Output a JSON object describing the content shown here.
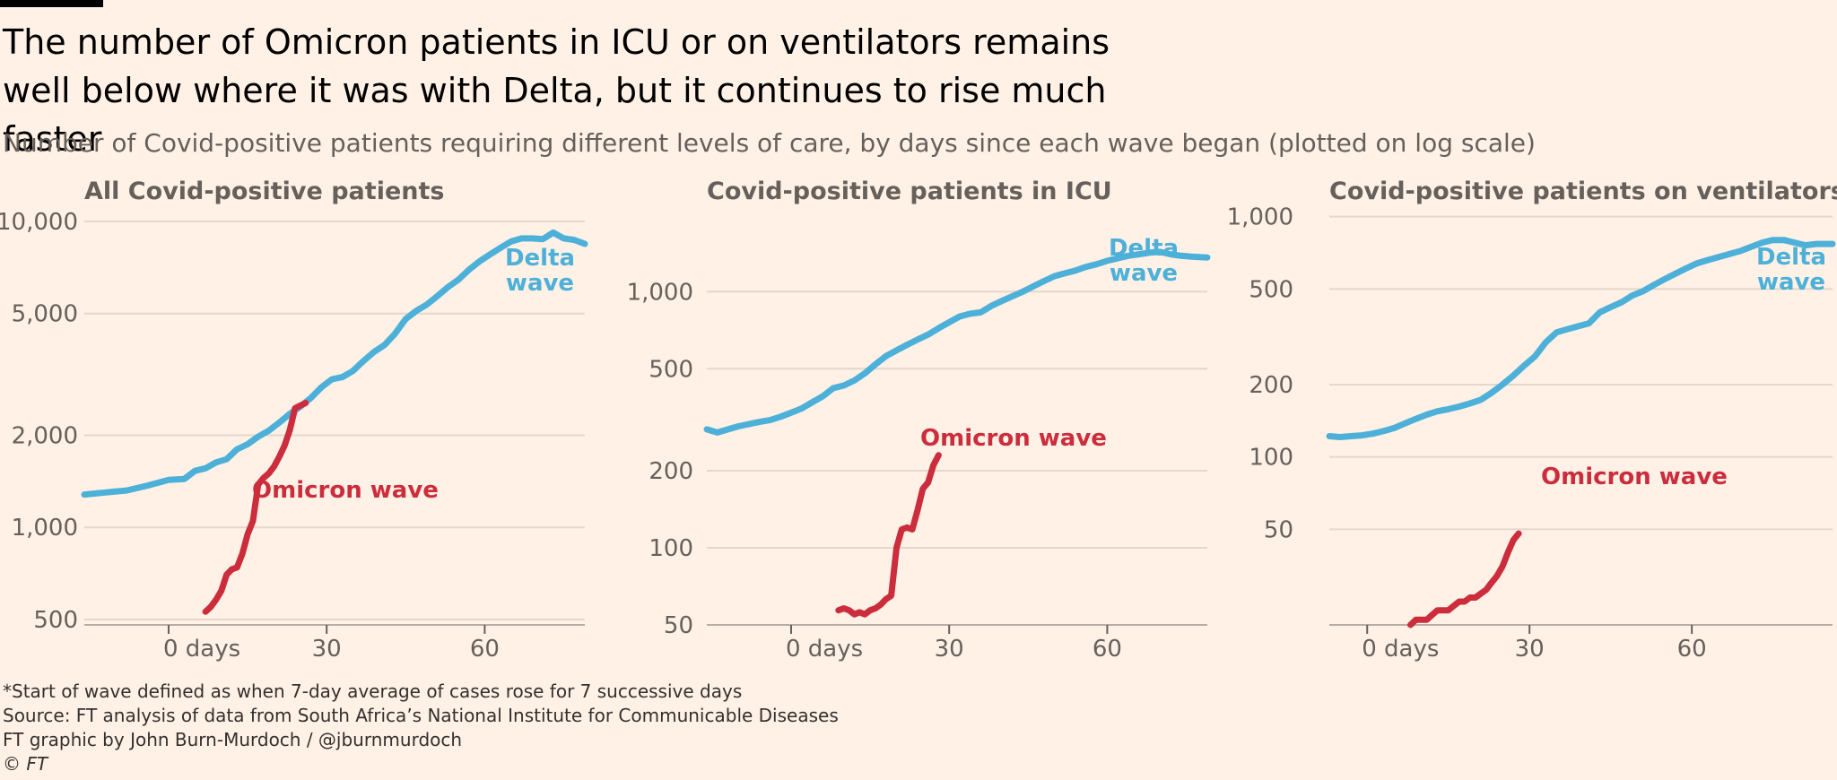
{
  "title": "The number of Omicron patients in ICU or on ventilators remains well below where it was with Delta, but it continues to rise much faster",
  "subtitle": "Number of Covid-positive patients requiring different levels of care, by days since each wave began (plotted on log scale)",
  "footer": {
    "note": "*Start of wave defined as when 7-day average of cases rose for 7 successive days",
    "source": "Source: FT analysis of data from South Africa’s National Institute for Communicable Diseases",
    "credit": "FT graphic by John Burn-Murdoch / @jburnmurdoch",
    "copyright": "© FT"
  },
  "colors": {
    "delta": "#4DB0D9",
    "omicron": "#CC2D3D",
    "background": "#FFF1E5",
    "grid": "#E3D8CC"
  },
  "chart_data": [
    {
      "type": "line",
      "title": "All Covid-positive patients",
      "xlabel": "",
      "ylabel": "",
      "yscale": "log",
      "xlim": [
        -16,
        79
      ],
      "ylim": [
        480,
        10000
      ],
      "x_ticks": [
        0,
        30,
        60
      ],
      "x_tick_labels": [
        "0 days",
        "30",
        "60"
      ],
      "y_ticks": [
        500,
        1000,
        2000,
        5000,
        10000
      ],
      "y_tick_labels": [
        "500",
        "1,000",
        "2,000",
        "5,000",
        "10,000"
      ],
      "series": [
        {
          "name": "Delta wave",
          "label": [
            "Delta",
            "wave"
          ],
          "x": [
            -16,
            -12,
            -8,
            -4,
            0,
            3,
            5,
            7,
            9,
            11,
            13,
            15,
            17,
            19,
            21,
            23,
            25,
            27,
            29,
            31,
            33,
            35,
            37,
            39,
            41,
            43,
            45,
            47,
            49,
            51,
            53,
            55,
            57,
            59,
            61,
            63,
            65,
            67,
            69,
            71,
            73,
            75,
            77,
            79
          ],
          "y": [
            1280,
            1300,
            1320,
            1370,
            1430,
            1440,
            1530,
            1560,
            1630,
            1670,
            1800,
            1870,
            1980,
            2070,
            2200,
            2350,
            2480,
            2650,
            2870,
            3050,
            3100,
            3250,
            3500,
            3750,
            3950,
            4300,
            4800,
            5100,
            5350,
            5700,
            6100,
            6450,
            6950,
            7400,
            7800,
            8200,
            8600,
            8800,
            8800,
            8750,
            9200,
            8800,
            8700,
            8450
          ]
        },
        {
          "name": "Omicron wave",
          "label": [
            "Omicron wave"
          ],
          "x": [
            7,
            8,
            9,
            10,
            11,
            12,
            13,
            14,
            15,
            16,
            17,
            18,
            19,
            20,
            21,
            22,
            23,
            24,
            25,
            26
          ],
          "y": [
            530,
            550,
            580,
            620,
            700,
            730,
            740,
            820,
            950,
            1050,
            1380,
            1450,
            1500,
            1580,
            1700,
            1850,
            2080,
            2450,
            2500,
            2550
          ]
        }
      ]
    },
    {
      "type": "line",
      "title": "Covid-positive patients in ICU",
      "xlabel": "",
      "ylabel": "",
      "yscale": "log",
      "xlim": [
        -16,
        79
      ],
      "ylim": [
        50,
        1500
      ],
      "x_ticks": [
        0,
        30,
        60
      ],
      "x_tick_labels": [
        "0 days",
        "30",
        "60"
      ],
      "y_ticks": [
        50,
        100,
        200,
        500,
        1000
      ],
      "y_tick_labels": [
        "50",
        "100",
        "200",
        "500",
        "1,000"
      ],
      "series": [
        {
          "name": "Delta wave",
          "label": [
            "Delta",
            "wave"
          ],
          "x": [
            -16,
            -14,
            -10,
            -6,
            -4,
            -2,
            0,
            2,
            4,
            6,
            8,
            10,
            12,
            14,
            16,
            18,
            20,
            22,
            24,
            26,
            28,
            30,
            32,
            34,
            36,
            38,
            40,
            42,
            44,
            46,
            48,
            50,
            52,
            54,
            56,
            58,
            60,
            62,
            64,
            66,
            68,
            70,
            72,
            74,
            76,
            79
          ],
          "y": [
            290,
            282,
            298,
            310,
            315,
            325,
            337,
            350,
            370,
            390,
            420,
            430,
            450,
            480,
            520,
            560,
            590,
            620,
            650,
            680,
            720,
            760,
            800,
            820,
            830,
            880,
            920,
            960,
            1000,
            1050,
            1100,
            1150,
            1180,
            1210,
            1250,
            1280,
            1320,
            1350,
            1380,
            1400,
            1420,
            1430,
            1400,
            1380,
            1370,
            1360
          ]
        },
        {
          "name": "Omicron wave",
          "label": [
            "Omicron wave"
          ],
          "x": [
            9,
            10,
            11,
            12,
            13,
            14,
            15,
            16,
            17,
            18,
            19,
            20,
            21,
            22,
            23,
            24,
            25,
            26,
            27,
            28
          ],
          "y": [
            57,
            58,
            57,
            55,
            56,
            55,
            57,
            58,
            60,
            63,
            65,
            100,
            118,
            120,
            118,
            140,
            170,
            180,
            210,
            230
          ]
        }
      ]
    },
    {
      "type": "line",
      "title": "Covid-positive patients on ventilators",
      "xlabel": "",
      "ylabel": "",
      "yscale": "log",
      "xlim": [
        -7,
        86
      ],
      "ylim": [
        20,
        1050
      ],
      "x_ticks": [
        0,
        30,
        60
      ],
      "x_tick_labels": [
        "0 days",
        "30",
        "60"
      ],
      "y_ticks": [
        50,
        100,
        200,
        500,
        1000
      ],
      "y_tick_labels": [
        "50",
        "100",
        "200",
        "500",
        "1,000"
      ],
      "series": [
        {
          "name": "Delta wave",
          "label": [
            "Delta",
            "wave"
          ],
          "x": [
            -7,
            -5,
            -3,
            -1,
            1,
            3,
            5,
            7,
            9,
            11,
            13,
            15,
            17,
            19,
            21,
            23,
            25,
            27,
            29,
            31,
            33,
            35,
            37,
            39,
            41,
            43,
            45,
            47,
            49,
            51,
            53,
            55,
            57,
            59,
            61,
            63,
            65,
            67,
            69,
            71,
            73,
            75,
            77,
            79,
            81,
            83,
            86
          ],
          "y": [
            122,
            121,
            122,
            123,
            125,
            128,
            132,
            138,
            144,
            150,
            155,
            158,
            162,
            167,
            173,
            185,
            200,
            218,
            240,
            262,
            300,
            330,
            340,
            350,
            360,
            400,
            420,
            440,
            470,
            490,
            520,
            550,
            580,
            610,
            640,
            660,
            680,
            700,
            720,
            750,
            780,
            800,
            800,
            780,
            760,
            770,
            770
          ]
        },
        {
          "name": "Omicron wave",
          "label": [
            "Omicron wave"
          ],
          "x": [
            8,
            9,
            10,
            11,
            12,
            13,
            14,
            15,
            16,
            17,
            18,
            19,
            20,
            21,
            22,
            23,
            24,
            25,
            26,
            27,
            28
          ],
          "y": [
            20,
            21,
            21,
            21,
            22,
            23,
            23,
            23,
            24,
            25,
            25,
            26,
            26,
            27,
            28,
            30,
            32,
            35,
            40,
            45,
            48
          ]
        }
      ]
    }
  ]
}
